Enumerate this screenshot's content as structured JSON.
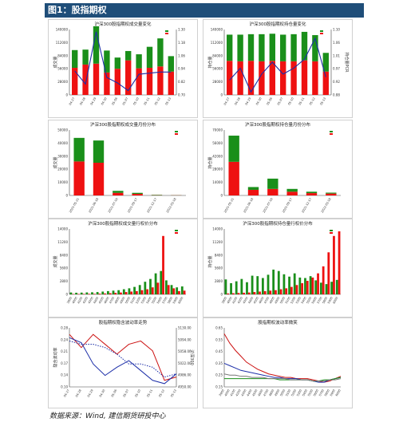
{
  "header": {
    "title": "图1：股指期权"
  },
  "footer": {
    "source": "数据来源：Wind, 建信期货研投中心"
  },
  "colors": {
    "put": "#ee1111",
    "call": "#1a8f1a",
    "line": "#1c2ea8",
    "header": "#1f4e79"
  },
  "chart_data": [
    {
      "type": "bar",
      "title": "沪深300股指期权成交量变化",
      "ylabel": "成交量",
      "y2label": "",
      "categories": [
        "04-27",
        "04-28",
        "04-29",
        "04-30",
        "05-06",
        "05-07",
        "05-10",
        "05-11",
        "05-12",
        "05-13"
      ],
      "series": [
        {
          "name": "put",
          "values": [
            58000,
            65000,
            67000,
            48000,
            56000,
            74000,
            57000,
            58000,
            61000,
            50000
          ]
        },
        {
          "name": "call",
          "values": [
            38000,
            32000,
            80000,
            47000,
            24000,
            20000,
            30000,
            45000,
            60000,
            33000
          ]
        },
        {
          "name": "ratio",
          "axis": "right",
          "values": [
            0.92,
            0.8,
            1.28,
            0.86,
            0.81,
            0.74,
            0.89,
            0.9,
            0.91,
            0.91
          ]
        }
      ],
      "ylim": [
        0,
        140000
      ],
      "y2lim": [
        0.7,
        1.3
      ]
    },
    {
      "type": "bar",
      "title": "沪深300股指期权持仓量变化",
      "ylabel": "持仓量",
      "y2label": "持仓量PCR",
      "categories": [
        "04-27",
        "04-28",
        "04-29",
        "04-30",
        "05-06",
        "05-07",
        "05-10",
        "05-11",
        "05-12",
        "05-13"
      ],
      "series": [
        {
          "name": "put",
          "values": [
            73000,
            72000,
            73000,
            72000,
            73000,
            72000,
            72000,
            74000,
            72000,
            50000
          ]
        },
        {
          "name": "call",
          "values": [
            56000,
            57000,
            57000,
            58000,
            58000,
            57000,
            58000,
            61000,
            56000,
            40000
          ]
        },
        {
          "name": "ratio",
          "axis": "right",
          "values": [
            0.93,
            0.97,
            0.89,
            0.95,
            0.99,
            0.95,
            0.97,
            1.0,
            1.07,
            0.94
          ]
        }
      ],
      "ylim": [
        0,
        140000
      ],
      "y2lim": [
        0.88,
        1.1
      ]
    },
    {
      "type": "bar",
      "title": "沪深300股指期权成交量月份分布",
      "ylabel": "成交量",
      "categories": [
        "2021-05-21",
        "2021-06-18",
        "2021-07-16",
        "2021-09-17",
        "2021-12-17",
        "2022-03-18"
      ],
      "series": [
        {
          "name": "put",
          "values": [
            26000,
            25000,
            2000,
            1200,
            200,
            150
          ]
        },
        {
          "name": "call",
          "values": [
            18000,
            17000,
            1500,
            800,
            300,
            100
          ]
        }
      ],
      "ylim": [
        0,
        50000
      ]
    },
    {
      "type": "bar",
      "title": "沪深300股指期权持仓量月份分布",
      "ylabel": "持仓量",
      "categories": [
        "2021-05-21",
        "2021-06-18",
        "2021-07-16",
        "2021-09-17",
        "2021-12-17",
        "2022-03-18"
      ],
      "series": [
        {
          "name": "put",
          "values": [
            36000,
            6000,
            7000,
            4000,
            2500,
            2000
          ]
        },
        {
          "name": "call",
          "values": [
            28000,
            3000,
            11000,
            3000,
            1500,
            1000
          ]
        }
      ],
      "ylim": [
        0,
        70000
      ]
    },
    {
      "type": "bar",
      "title": "沪深300股指期权成交量行权价分布",
      "ylabel": "成交量",
      "categories": [
        "3900",
        "4000",
        "4100",
        "4200",
        "4300",
        "4400",
        "4500",
        "4600",
        "4700",
        "4800",
        "4900",
        "5000",
        "5100",
        "5200",
        "5300",
        "5400",
        "5500",
        "5600",
        "5700",
        "5800",
        "5900",
        "6000"
      ],
      "series": [
        {
          "name": "put",
          "values": [
            80,
            90,
            100,
            110,
            120,
            150,
            200,
            260,
            320,
            400,
            500,
            600,
            700,
            900,
            1100,
            1500,
            2500,
            12500,
            2000,
            1300,
            700,
            800
          ]
        },
        {
          "name": "call",
          "values": [
            400,
            350,
            380,
            420,
            450,
            500,
            600,
            700,
            800,
            900,
            1100,
            1300,
            1600,
            2000,
            2700,
            3300,
            4500,
            5000,
            3000,
            2000,
            1500,
            1700
          ]
        }
      ],
      "ylim": [
        0,
        14000
      ]
    },
    {
      "type": "bar",
      "title": "沪深300股指期权持仓量行权价分布",
      "ylabel": "持仓量",
      "categories": [
        "3900",
        "4000",
        "4100",
        "4200",
        "4300",
        "4400",
        "4500",
        "4600",
        "4700",
        "4800",
        "4900",
        "5000",
        "5100",
        "5200",
        "5300",
        "5400",
        "5500",
        "5600",
        "5700",
        "5800",
        "5900",
        "6000"
      ],
      "series": [
        {
          "name": "put",
          "values": [
            200,
            250,
            300,
            350,
            400,
            500,
            600,
            700,
            800,
            900,
            1100,
            1300,
            1600,
            2000,
            2400,
            2900,
            3600,
            4500,
            6000,
            9000,
            12500,
            13500
          ]
        },
        {
          "name": "call",
          "values": [
            3200,
            2400,
            2800,
            3300,
            2600,
            4000,
            3900,
            3500,
            4200,
            5300,
            5000,
            4300,
            3800,
            4500,
            3600,
            3500,
            3900,
            3000,
            2500,
            2200,
            2700,
            3100
          ]
        }
      ],
      "ylim": [
        0,
        14000
      ]
    },
    {
      "type": "line",
      "title": "股指期权隐含波动率走势",
      "ylabel": "隐含波动率",
      "y2label": "沪深300",
      "x": [
        "04-27",
        "04-28",
        "04-29",
        "04-30",
        "05-06",
        "05-07",
        "05-10",
        "05-11",
        "05-12",
        "05-13"
      ],
      "series": [
        {
          "name": "series-1",
          "axis": "left",
          "style": "solid",
          "values": [
            0.26,
            0.22,
            0.26,
            0.23,
            0.2,
            0.23,
            0.24,
            0.21,
            0.12,
            0.13
          ]
        },
        {
          "name": "series-2",
          "axis": "left",
          "style": "dotted",
          "values": [
            0.24,
            0.23,
            0.23,
            0.22,
            0.2,
            0.17,
            0.17,
            0.16,
            0.13,
            0.14
          ]
        },
        {
          "name": "series-3",
          "axis": "right",
          "style": "solid",
          "values": [
            5100,
            5085,
            5020,
            4985,
            5010,
            5030,
            5000,
            4970,
            4960,
            4990
          ]
        }
      ],
      "ylim": [
        0.1,
        0.28
      ],
      "y2lim": [
        4950,
        5130
      ]
    },
    {
      "type": "line",
      "title": "股指期权波动率微笑",
      "ylabel": "",
      "x": [
        "3900",
        "4000",
        "4100",
        "4200",
        "4300",
        "4400",
        "4500",
        "4600",
        "4700",
        "4800",
        "4900",
        "5000",
        "5100",
        "5200",
        "5300",
        "5400",
        "5500",
        "5600",
        "5700",
        "5800",
        "5900",
        "6000"
      ],
      "series": [
        {
          "name": "series-1",
          "values": [
            0.6,
            0.52,
            0.46,
            0.41,
            0.36,
            0.33,
            0.3,
            0.28,
            0.26,
            0.25,
            0.24,
            0.23,
            0.23,
            0.22,
            0.22,
            0.22,
            0.21,
            0.2,
            0.19,
            0.2,
            0.22,
            0.24
          ]
        },
        {
          "name": "series-2",
          "values": [
            0.35,
            0.33,
            0.31,
            0.29,
            0.28,
            0.27,
            0.26,
            0.25,
            0.24,
            0.23,
            0.23,
            0.22,
            0.22,
            0.22,
            0.21,
            0.21,
            0.2,
            0.19,
            0.19,
            0.21,
            0.22,
            0.23
          ]
        },
        {
          "name": "series-3",
          "values": [
            0.22,
            0.22,
            0.22,
            0.22,
            0.22,
            0.22,
            0.22,
            0.22,
            0.22,
            0.22,
            0.21,
            0.21,
            0.21,
            0.21,
            0.21,
            0.21,
            0.2,
            0.2,
            0.21,
            0.21,
            0.22,
            0.23
          ]
        },
        {
          "name": "series-4",
          "values": [
            0.26,
            0.25,
            0.25,
            0.24,
            0.24,
            0.23,
            0.23,
            0.23,
            0.22,
            0.22,
            0.22,
            0.22,
            0.21,
            0.21,
            0.21,
            0.21,
            0.2,
            0.2,
            0.2,
            0.21,
            0.21,
            0.22
          ]
        }
      ],
      "ylim": [
        0.15,
        0.65
      ]
    }
  ]
}
